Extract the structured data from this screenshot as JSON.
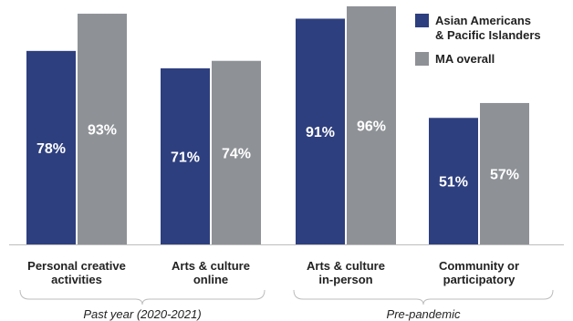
{
  "chart_data": {
    "type": "bar",
    "categories": [
      [
        "Personal creative",
        "activities"
      ],
      [
        "Arts & culture",
        "online"
      ],
      [
        "Arts & culture",
        "in-person"
      ],
      [
        "Community or",
        "participatory"
      ]
    ],
    "series": [
      {
        "name": [
          "Asian Americans",
          "& Pacific Islanders"
        ],
        "values": [
          78,
          71,
          91,
          51
        ],
        "labels": [
          "78%",
          "71%",
          "91%",
          "51%"
        ],
        "color": "#2e3f7f"
      },
      {
        "name": [
          "MA overall"
        ],
        "values": [
          93,
          74,
          96,
          57
        ],
        "labels": [
          "93%",
          "74%",
          "96%",
          "57%"
        ],
        "color": "#8e9196"
      }
    ],
    "groups": [
      {
        "label": "Past year (2020-2021)",
        "categories": [
          0,
          1
        ]
      },
      {
        "label": "Pre-pandemic",
        "categories": [
          2,
          3
        ]
      }
    ],
    "ylim": [
      0,
      100
    ],
    "grid": false,
    "legend": "top-right",
    "title": "",
    "xlabel": "",
    "ylabel": ""
  }
}
